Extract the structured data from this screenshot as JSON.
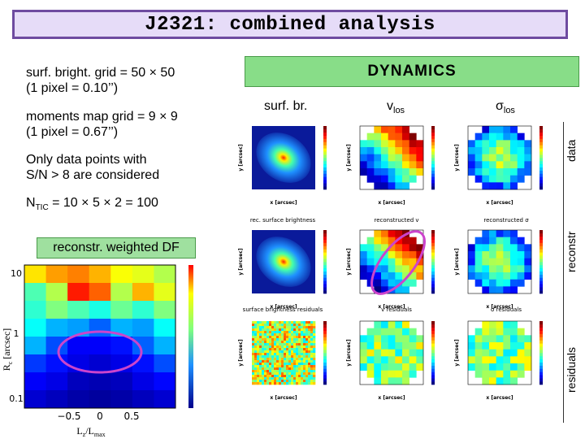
{
  "title": "J2321: combined analysis",
  "left_text": {
    "grid_line1": "surf.  bright. grid = 50 × 50",
    "grid_line2": "(1 pixel = 0.10’’)",
    "moments_line1": "moments map grid = 9 × 9",
    "moments_line2": "(1 pixel = 0.67’’)",
    "sn_line1": "Only data points with",
    "sn_line2": "S/N > 8 are considered",
    "ntic_main": "N",
    "ntic_sub": "TIC",
    "ntic_rest": " = 10 × 5 × 2 = 100",
    "reconstr_box": "reconstr. weighted DF"
  },
  "dynamics": {
    "title": "DYNAMICS",
    "col_surf": "surf. br.",
    "col_vlos_main": "v",
    "col_vlos_sub": "los",
    "col_sigma_main": "σ",
    "col_sigma_sub": "los",
    "row_data": "data",
    "row_reconstr": "reconstr",
    "row_residuals": "residuals",
    "caption_row2_1": "rec. surface brightness",
    "caption_row2_2": "reconstructed v",
    "caption_row2_3": "reconstructed σ",
    "caption_row3_1": "surface brightness residuals",
    "caption_row3_2": "v   residuals",
    "caption_row3_3": "σ   residuals",
    "xaxis": "x [arcsec]",
    "yaxis": "y [arcsec]"
  },
  "df_plot": {
    "ylabel": "R",
    "ylabel_sub": "c",
    "ylabel_rest": " [arcsec]",
    "xlabel_main": "L",
    "xlabel_sub1": "z",
    "xlabel_mid": "/L",
    "xlabel_sub2": "max",
    "yticks": [
      "10",
      "1",
      "0.1"
    ],
    "xticks": [
      "−0.5",
      "0",
      "0.5"
    ]
  },
  "colors": {
    "title_border": "#6e4ba0",
    "title_bg": "#e6dcf8",
    "dyn_bg": "#88dd88",
    "ellipse": "#cc44cc"
  }
}
